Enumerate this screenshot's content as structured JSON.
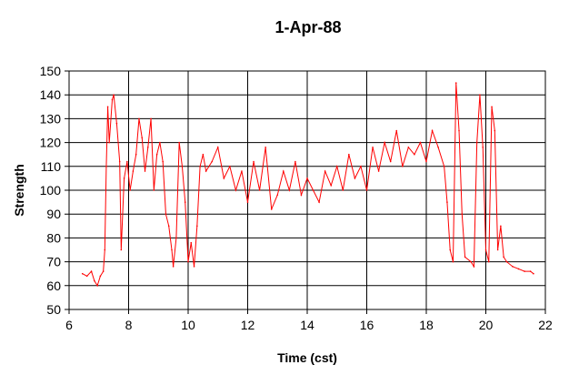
{
  "chart_data": {
    "type": "line",
    "title": "1-Apr-88",
    "xlabel": "Time (cst)",
    "ylabel": "Strength",
    "xlim": [
      6,
      22
    ],
    "ylim": [
      50,
      150
    ],
    "xticks": [
      6,
      8,
      10,
      12,
      14,
      16,
      18,
      20,
      22
    ],
    "yticks": [
      50,
      60,
      70,
      80,
      90,
      100,
      110,
      120,
      130,
      140,
      150
    ],
    "grid": true,
    "legend": "none",
    "series": [
      {
        "color": "#ff0000",
        "points": [
          [
            6.45,
            65
          ],
          [
            6.6,
            64
          ],
          [
            6.75,
            66
          ],
          [
            6.85,
            62
          ],
          [
            6.95,
            60
          ],
          [
            7.05,
            64
          ],
          [
            7.15,
            66
          ],
          [
            7.2,
            75
          ],
          [
            7.25,
            110
          ],
          [
            7.3,
            135
          ],
          [
            7.35,
            120
          ],
          [
            7.45,
            138
          ],
          [
            7.5,
            140
          ],
          [
            7.6,
            128
          ],
          [
            7.7,
            112
          ],
          [
            7.75,
            75
          ],
          [
            7.85,
            105
          ],
          [
            7.95,
            112
          ],
          [
            8.05,
            100
          ],
          [
            8.15,
            108
          ],
          [
            8.25,
            115
          ],
          [
            8.35,
            130
          ],
          [
            8.45,
            122
          ],
          [
            8.55,
            108
          ],
          [
            8.65,
            118
          ],
          [
            8.75,
            130
          ],
          [
            8.85,
            100
          ],
          [
            8.95,
            115
          ],
          [
            9.05,
            120
          ],
          [
            9.15,
            112
          ],
          [
            9.25,
            90
          ],
          [
            9.35,
            85
          ],
          [
            9.45,
            75
          ],
          [
            9.5,
            68
          ],
          [
            9.6,
            80
          ],
          [
            9.7,
            120
          ],
          [
            9.8,
            110
          ],
          [
            9.9,
            95
          ],
          [
            10.0,
            70
          ],
          [
            10.1,
            78
          ],
          [
            10.2,
            68
          ],
          [
            10.3,
            85
          ],
          [
            10.4,
            110
          ],
          [
            10.5,
            115
          ],
          [
            10.6,
            108
          ],
          [
            10.8,
            112
          ],
          [
            11.0,
            118
          ],
          [
            11.2,
            105
          ],
          [
            11.4,
            110
          ],
          [
            11.6,
            100
          ],
          [
            11.8,
            108
          ],
          [
            12.0,
            95
          ],
          [
            12.2,
            112
          ],
          [
            12.4,
            100
          ],
          [
            12.6,
            118
          ],
          [
            12.8,
            92
          ],
          [
            13.0,
            98
          ],
          [
            13.2,
            108
          ],
          [
            13.4,
            100
          ],
          [
            13.6,
            112
          ],
          [
            13.8,
            98
          ],
          [
            14.0,
            105
          ],
          [
            14.2,
            100
          ],
          [
            14.4,
            95
          ],
          [
            14.6,
            108
          ],
          [
            14.8,
            102
          ],
          [
            15.0,
            110
          ],
          [
            15.2,
            100
          ],
          [
            15.4,
            115
          ],
          [
            15.6,
            105
          ],
          [
            15.8,
            110
          ],
          [
            16.0,
            100
          ],
          [
            16.2,
            118
          ],
          [
            16.4,
            108
          ],
          [
            16.6,
            120
          ],
          [
            16.8,
            112
          ],
          [
            17.0,
            125
          ],
          [
            17.2,
            110
          ],
          [
            17.4,
            118
          ],
          [
            17.6,
            115
          ],
          [
            17.8,
            120
          ],
          [
            18.0,
            112
          ],
          [
            18.2,
            125
          ],
          [
            18.4,
            118
          ],
          [
            18.6,
            110
          ],
          [
            18.7,
            95
          ],
          [
            18.8,
            75
          ],
          [
            18.9,
            70
          ],
          [
            19.0,
            145
          ],
          [
            19.1,
            125
          ],
          [
            19.2,
            90
          ],
          [
            19.3,
            72
          ],
          [
            19.5,
            70
          ],
          [
            19.6,
            68
          ],
          [
            19.7,
            120
          ],
          [
            19.8,
            140
          ],
          [
            19.9,
            118
          ],
          [
            20.0,
            75
          ],
          [
            20.1,
            70
          ],
          [
            20.2,
            135
          ],
          [
            20.3,
            125
          ],
          [
            20.4,
            75
          ],
          [
            20.5,
            85
          ],
          [
            20.6,
            72
          ],
          [
            20.7,
            70
          ],
          [
            20.9,
            68
          ],
          [
            21.1,
            67
          ],
          [
            21.3,
            66
          ],
          [
            21.5,
            66
          ],
          [
            21.6,
            65
          ]
        ]
      }
    ]
  }
}
